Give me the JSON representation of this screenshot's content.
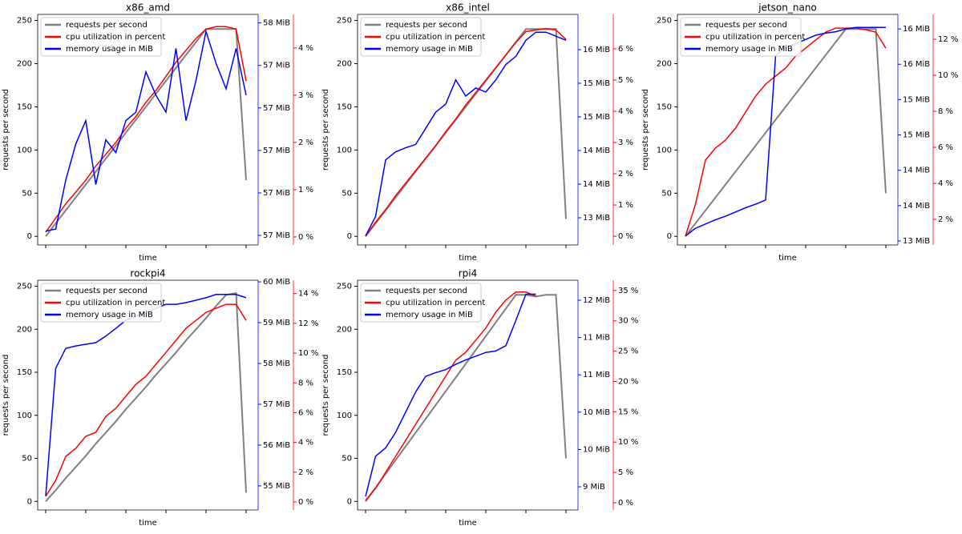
{
  "chart_data": [
    {
      "type": "line",
      "title": "x86_amd",
      "xlabel": "time",
      "ylabel": "requests per second",
      "legend": "upper left",
      "ylim": [
        -10,
        257
      ],
      "yticks": [
        0,
        50,
        100,
        150,
        200,
        250
      ],
      "y2lim": [
        56.555,
        57.64
      ],
      "y2ticks": [
        {
          "value": 56.6,
          "label": "57 MiB"
        },
        {
          "value": 56.8,
          "label": "57 MiB"
        },
        {
          "value": 57.0,
          "label": "57 MiB"
        },
        {
          "value": 57.2,
          "label": "57 MiB"
        },
        {
          "value": 57.4,
          "label": "57 MiB"
        },
        {
          "value": 57.6,
          "label": "58 MiB"
        }
      ],
      "y3lim": [
        -0.17,
        4.71
      ],
      "y3ticks": [
        {
          "value": 0,
          "label": "0 %"
        },
        {
          "value": 1,
          "label": "1 %"
        },
        {
          "value": 2,
          "label": "2 %"
        },
        {
          "value": 3,
          "label": "3 %"
        },
        {
          "value": 4,
          "label": "4 %"
        }
      ],
      "series": [
        {
          "name": "requests per second",
          "color": "#808080",
          "axis": "y",
          "values": [
            0,
            15,
            30,
            45,
            60,
            75,
            90,
            105,
            120,
            135,
            150,
            165,
            180,
            195,
            210,
            225,
            240,
            240,
            240,
            240,
            65
          ]
        },
        {
          "name": "cpu utilization in percent",
          "color": "#ff0000",
          "axis": "y3",
          "values": [
            0.1,
            0.4,
            0.7,
            0.95,
            1.2,
            1.5,
            1.75,
            2.0,
            2.3,
            2.55,
            2.85,
            3.1,
            3.4,
            3.7,
            3.95,
            4.2,
            4.4,
            4.45,
            4.45,
            4.4,
            3.3
          ]
        },
        {
          "name": "memory usage in MiB",
          "color": "#0000ff",
          "axis": "y2",
          "values": [
            56.62,
            56.63,
            56.86,
            57.03,
            57.14,
            56.84,
            57.05,
            56.99,
            57.14,
            57.18,
            57.37,
            57.26,
            57.18,
            57.48,
            57.14,
            57.33,
            57.56,
            57.41,
            57.29,
            57.48,
            57.26
          ]
        }
      ]
    },
    {
      "type": "line",
      "title": "x86_intel",
      "xlabel": "time",
      "ylabel": "requests per second",
      "legend": "upper left",
      "ylim": [
        -10,
        257
      ],
      "yticks": [
        0,
        50,
        100,
        150,
        200,
        250
      ],
      "y2lim": [
        12.845,
        16.274
      ],
      "y2ticks": [
        {
          "value": 13.25,
          "label": "13 MiB"
        },
        {
          "value": 13.75,
          "label": "14 MiB"
        },
        {
          "value": 14.25,
          "label": "14 MiB"
        },
        {
          "value": 14.75,
          "label": "15 MiB"
        },
        {
          "value": 15.25,
          "label": "15 MiB"
        },
        {
          "value": 15.75,
          "label": "16 MiB"
        }
      ],
      "y3lim": [
        -0.28,
        7.1
      ],
      "y3ticks": [
        {
          "value": 0,
          "label": "0 %"
        },
        {
          "value": 1,
          "label": "1 %"
        },
        {
          "value": 2,
          "label": "2 %"
        },
        {
          "value": 3,
          "label": "3 %"
        },
        {
          "value": 4,
          "label": "4 %"
        },
        {
          "value": 5,
          "label": "5 %"
        },
        {
          "value": 6,
          "label": "6 %"
        }
      ],
      "series": [
        {
          "name": "requests per second",
          "color": "#808080",
          "axis": "y",
          "values": [
            0,
            15,
            30,
            45,
            60,
            75,
            90,
            105,
            120,
            135,
            150,
            165,
            180,
            195,
            210,
            225,
            240,
            240,
            240,
            240,
            20
          ]
        },
        {
          "name": "cpu utilization in percent",
          "color": "#ff0000",
          "axis": "y3",
          "values": [
            0,
            0.45,
            0.85,
            1.3,
            1.7,
            2.1,
            2.5,
            2.9,
            3.35,
            3.75,
            4.2,
            4.6,
            5.0,
            5.4,
            5.8,
            6.2,
            6.55,
            6.6,
            6.65,
            6.6,
            6.3
          ]
        },
        {
          "name": "memory usage in MiB",
          "color": "#0000ff",
          "axis": "y2",
          "values": [
            12.98,
            13.27,
            14.11,
            14.23,
            14.29,
            14.34,
            14.58,
            14.82,
            14.94,
            15.3,
            15.06,
            15.18,
            15.12,
            15.3,
            15.53,
            15.65,
            15.89,
            16.01,
            16.01,
            15.95,
            15.89
          ]
        }
      ]
    },
    {
      "type": "line",
      "title": "jetson_nano",
      "xlabel": "time",
      "ylabel": "requests per second",
      "legend": "upper left",
      "ylim": [
        -10,
        257
      ],
      "yticks": [
        0,
        50,
        100,
        150,
        200,
        250
      ],
      "y2lim": [
        13.193,
        16.455
      ],
      "y2ticks": [
        {
          "value": 13.25,
          "label": "13 MiB"
        },
        {
          "value": 13.75,
          "label": "14 MiB"
        },
        {
          "value": 14.25,
          "label": "14 MiB"
        },
        {
          "value": 14.75,
          "label": "15 MiB"
        },
        {
          "value": 15.25,
          "label": "15 MiB"
        },
        {
          "value": 15.75,
          "label": "16 MiB"
        },
        {
          "value": 16.25,
          "label": "16 MiB"
        }
      ],
      "y3lim": [
        0.58,
        13.38
      ],
      "y3ticks": [
        {
          "value": 2,
          "label": "2 %"
        },
        {
          "value": 4,
          "label": "4 %"
        },
        {
          "value": 6,
          "label": "6 %"
        },
        {
          "value": 8,
          "label": "8 %"
        },
        {
          "value": 10,
          "label": "10 %"
        },
        {
          "value": 12,
          "label": "12 %"
        }
      ],
      "series": [
        {
          "name": "requests per second",
          "color": "#808080",
          "axis": "y",
          "values": [
            0,
            15,
            30,
            45,
            60,
            75,
            90,
            105,
            120,
            135,
            150,
            165,
            180,
            195,
            210,
            225,
            240,
            240,
            240,
            240,
            50
          ]
        },
        {
          "name": "cpu utilization in percent",
          "color": "#ff0000",
          "axis": "y3",
          "values": [
            1.07,
            2.84,
            5.29,
            5.96,
            6.4,
            7.07,
            7.96,
            8.84,
            9.51,
            9.96,
            10.4,
            11.07,
            11.51,
            11.96,
            12.4,
            12.62,
            12.62,
            12.62,
            12.53,
            12.4,
            11.51
          ]
        },
        {
          "name": "memory usage in MiB",
          "color": "#0000ff",
          "axis": "y2",
          "values": [
            13.32,
            13.43,
            13.49,
            13.55,
            13.6,
            13.66,
            13.72,
            13.77,
            13.83,
            15.87,
            15.99,
            16.04,
            16.1,
            16.16,
            16.19,
            16.21,
            16.25,
            16.27,
            16.27,
            16.27,
            16.27
          ]
        }
      ]
    },
    {
      "type": "line",
      "title": "rockpi4",
      "xlabel": "time",
      "ylabel": "requests per second",
      "legend": "upper left",
      "ylim": [
        -10,
        257
      ],
      "yticks": [
        0,
        50,
        100,
        150,
        200,
        250
      ],
      "y2lim": [
        54.41,
        60.04
      ],
      "y2ticks": [
        {
          "value": 55,
          "label": "55 MiB"
        },
        {
          "value": 56,
          "label": "56 MiB"
        },
        {
          "value": 57,
          "label": "57 MiB"
        },
        {
          "value": 58,
          "label": "58 MiB"
        },
        {
          "value": 59,
          "label": "59 MiB"
        },
        {
          "value": 60,
          "label": "60 MiB"
        }
      ],
      "y3lim": [
        -0.54,
        14.9
      ],
      "y3ticks": [
        {
          "value": 0,
          "label": "0 %"
        },
        {
          "value": 2,
          "label": "2 %"
        },
        {
          "value": 4,
          "label": "4 %"
        },
        {
          "value": 6,
          "label": "6 %"
        },
        {
          "value": 8,
          "label": "8 %"
        },
        {
          "value": 10,
          "label": "10 %"
        },
        {
          "value": 12,
          "label": "12 %"
        },
        {
          "value": 14,
          "label": "14 %"
        }
      ],
      "series": [
        {
          "name": "requests per second",
          "color": "#808080",
          "axis": "y",
          "values": [
            0,
            13,
            27,
            40,
            53,
            67,
            80,
            93,
            107,
            120,
            133,
            147,
            160,
            173,
            187,
            200,
            213,
            227,
            240,
            242,
            10
          ]
        },
        {
          "name": "cpu utilization in percent",
          "color": "#ff0000",
          "axis": "y3",
          "values": [
            0.38,
            1.45,
            3.06,
            3.6,
            4.41,
            4.68,
            5.75,
            6.29,
            7.1,
            7.9,
            8.44,
            9.25,
            10.05,
            10.86,
            11.67,
            12.2,
            12.74,
            13.01,
            13.28,
            13.28,
            12.2
          ]
        },
        {
          "name": "memory usage in MiB",
          "color": "#0000ff",
          "axis": "y2",
          "values": [
            54.75,
            57.88,
            58.37,
            58.43,
            58.47,
            58.51,
            58.67,
            58.86,
            59.06,
            59.16,
            59.25,
            59.35,
            59.45,
            59.45,
            59.49,
            59.55,
            59.61,
            59.69,
            59.69,
            59.69,
            59.61
          ]
        }
      ]
    },
    {
      "type": "line",
      "title": "rpi4",
      "xlabel": "time",
      "ylabel": "requests per second",
      "legend": "upper left",
      "ylim": [
        -10,
        257
      ],
      "yticks": [
        0,
        50,
        100,
        150,
        200,
        250
      ],
      "y2lim": [
        8.939,
        12.018
      ],
      "y2ticks": [
        {
          "value": 9.25,
          "label": "9 MiB"
        },
        {
          "value": 9.75,
          "label": "10 MiB"
        },
        {
          "value": 10.25,
          "label": "10 MiB"
        },
        {
          "value": 10.75,
          "label": "11 MiB"
        },
        {
          "value": 11.25,
          "label": "11 MiB"
        },
        {
          "value": 11.75,
          "label": "12 MiB"
        }
      ],
      "y3lim": [
        -1.19,
        36.7
      ],
      "y3ticks": [
        {
          "value": 0,
          "label": "0 %"
        },
        {
          "value": 5,
          "label": "5 %"
        },
        {
          "value": 10,
          "label": "10 %"
        },
        {
          "value": 15,
          "label": "15 %"
        },
        {
          "value": 20,
          "label": "20 %"
        },
        {
          "value": 25,
          "label": "25 %"
        },
        {
          "value": 30,
          "label": "30 %"
        },
        {
          "value": 35,
          "label": "35 %"
        }
      ],
      "series": [
        {
          "name": "requests per second",
          "color": "#808080",
          "axis": "y",
          "values": [
            0,
            16,
            32,
            48,
            64,
            80,
            96,
            112,
            128,
            144,
            160,
            176,
            192,
            208,
            224,
            240,
            240,
            238,
            240,
            240,
            50
          ]
        },
        {
          "name": "cpu utilization in percent",
          "color": "#ff0000",
          "axis": "y3",
          "values": [
            0.4,
            2.38,
            5.02,
            7.66,
            10.3,
            12.95,
            15.59,
            18.23,
            20.87,
            23.51,
            24.83,
            26.82,
            28.8,
            31.44,
            33.42,
            34.74,
            34.74,
            34.08,
            null,
            null,
            null
          ]
        },
        {
          "name": "memory usage in MiB",
          "color": "#0000ff",
          "axis": "y2",
          "values": [
            9.12,
            9.66,
            9.77,
            9.98,
            10.25,
            10.52,
            10.73,
            10.78,
            10.82,
            10.89,
            10.95,
            11.0,
            11.05,
            11.07,
            11.14,
            11.48,
            11.83,
            11.83,
            null,
            null,
            null
          ]
        }
      ]
    }
  ]
}
